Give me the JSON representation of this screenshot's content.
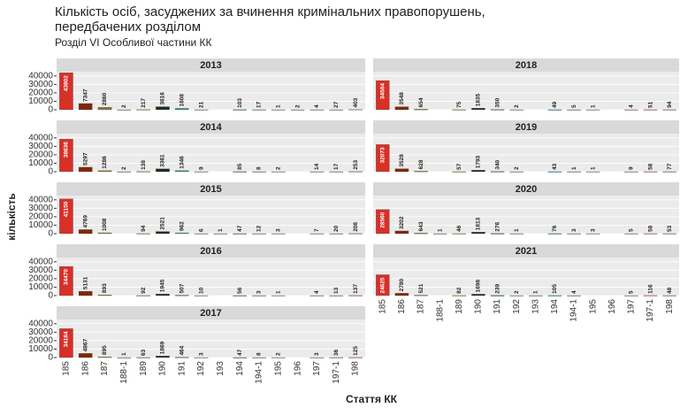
{
  "chart_data": {
    "type": "bar",
    "title": "Кількість осіб, засуджених за вчинення кримінальних правопорушень,",
    "title_line2": "передбачених розділом",
    "subtitle": "Розділ  VI  Особливої частини КК",
    "x_label": "Стаття КК",
    "y_label": "кількість",
    "categories": [
      "185",
      "186",
      "187",
      "188-1",
      "189",
      "190",
      "191",
      "192",
      "193",
      "194",
      "194-1",
      "195",
      "196",
      "197",
      "197-1",
      "198"
    ],
    "colors": [
      "#d73027",
      "#7f2704",
      "#8c6d31",
      "#bdbdbd",
      "#a6d96a",
      "#1b2e1b",
      "#2e8b57",
      "#b8e0b0",
      "#9ecae1",
      "#6baed6",
      "#9ecae1",
      "#c6dbef",
      "#d4b9da",
      "#f1b6da",
      "#f4a6c6",
      "#f4a6c6"
    ],
    "ylim": [
      0,
      45000
    ],
    "yticks": [
      0,
      10000,
      20000,
      30000,
      40000
    ],
    "grid": true,
    "panels": [
      {
        "title": "2013",
        "values": [
          43802,
          7347,
          2860,
          2,
          217,
          3616,
          1608,
          21,
          null,
          103,
          17,
          1,
          2,
          4,
          27,
          403
        ]
      },
      {
        "title": "2014",
        "values": [
          38636,
          5297,
          1286,
          2,
          138,
          3361,
          1346,
          9,
          null,
          85,
          8,
          2,
          null,
          14,
          17,
          253
        ]
      },
      {
        "title": "2015",
        "values": [
          41150,
          4769,
          1008,
          null,
          94,
          2521,
          962,
          6,
          1,
          47,
          12,
          3,
          null,
          7,
          20,
          208
        ]
      },
      {
        "title": "2016",
        "values": [
          34470,
          5131,
          893,
          null,
          92,
          1945,
          507,
          10,
          null,
          56,
          3,
          1,
          null,
          4,
          13,
          137
        ]
      },
      {
        "title": "2017",
        "values": [
          34164,
          4867,
          895,
          1,
          63,
          1869,
          464,
          3,
          null,
          47,
          8,
          2,
          null,
          3,
          36,
          125
        ]
      },
      {
        "title": "2018",
        "values": [
          34504,
          3548,
          654,
          null,
          75,
          1835,
          350,
          2,
          null,
          49,
          5,
          1,
          null,
          4,
          51,
          94
        ]
      },
      {
        "title": "2019",
        "values": [
          32073,
          3528,
          628,
          null,
          57,
          1793,
          340,
          2,
          null,
          43,
          1,
          1,
          null,
          9,
          58,
          77
        ]
      },
      {
        "title": "2020",
        "values": [
          28560,
          3202,
          643,
          1,
          46,
          1813,
          276,
          1,
          null,
          76,
          3,
          3,
          null,
          5,
          58,
          53
        ]
      },
      {
        "title": "2021",
        "values": [
          24625,
          2780,
          521,
          null,
          82,
          1698,
          239,
          2,
          1,
          105,
          4,
          null,
          null,
          5,
          116,
          48
        ]
      }
    ]
  }
}
